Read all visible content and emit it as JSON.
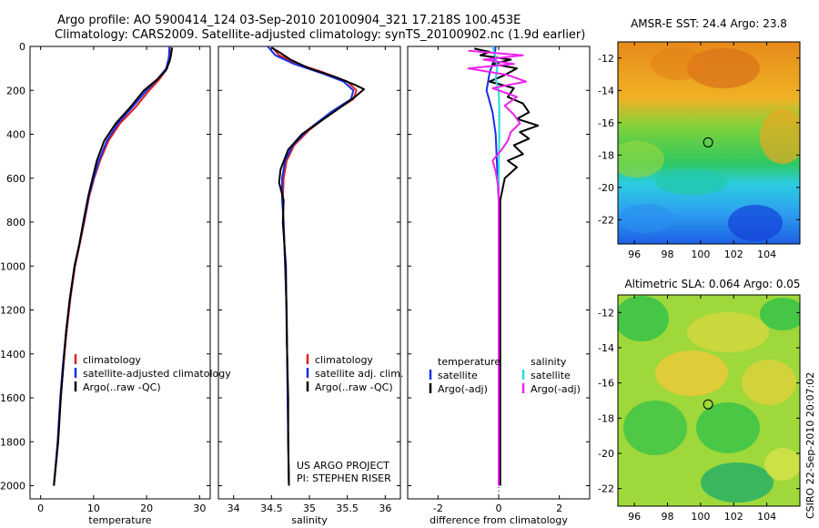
{
  "header": {
    "line1": "Argo profile: AO 5900414_124 03-Sep-2010 20100904_321 17.218S 100.453E",
    "line2": "Climatology: CARS2009. Satellite-adjusted climatology: synTS_20100902.nc (1.9d earlier)"
  },
  "side_label": "CSIRO 22-Sep-2010 20:07:02",
  "colors": {
    "climatology": "#e02020",
    "satellite": "#1a2ee8",
    "argo": "#000000",
    "sal_sat": "#22dddd",
    "sal_argo": "#ee22ee"
  },
  "chart_data": [
    {
      "type": "line",
      "id": "temperature",
      "xlabel": "temperature",
      "ylabel": "",
      "xlim": [
        -2,
        32
      ],
      "ylim": [
        2060,
        0
      ],
      "xticks": [
        0,
        10,
        20,
        30
      ],
      "yticks": [
        0,
        200,
        400,
        600,
        800,
        1000,
        1200,
        1400,
        1600,
        1800,
        2000
      ],
      "legend": [
        "climatology",
        "satellite-adjusted climatology",
        "Argo(..raw -QC)"
      ],
      "series": [
        {
          "name": "climatology",
          "color": "climatology",
          "points": [
            [
              24.4,
              0
            ],
            [
              24.3,
              50
            ],
            [
              23.9,
              100
            ],
            [
              22.4,
              150
            ],
            [
              20.5,
              200
            ],
            [
              17.8,
              280
            ],
            [
              15.0,
              350
            ],
            [
              12.8,
              430
            ],
            [
              11.2,
              520
            ],
            [
              10.1,
              600
            ],
            [
              9.2,
              680
            ],
            [
              8.4,
              780
            ],
            [
              7.4,
              900
            ],
            [
              6.5,
              1000
            ],
            [
              5.6,
              1150
            ],
            [
              4.9,
              1300
            ],
            [
              4.3,
              1450
            ],
            [
              3.8,
              1600
            ],
            [
              3.3,
              1800
            ],
            [
              2.5,
              2000
            ]
          ]
        },
        {
          "name": "satellite-adjusted climatology",
          "color": "satellite",
          "points": [
            [
              24.3,
              0
            ],
            [
              24.2,
              50
            ],
            [
              23.7,
              100
            ],
            [
              22.0,
              150
            ],
            [
              20.0,
              200
            ],
            [
              17.2,
              280
            ],
            [
              14.6,
              350
            ],
            [
              12.5,
              430
            ],
            [
              11.0,
              520
            ],
            [
              10.0,
              600
            ],
            [
              9.1,
              680
            ],
            [
              8.3,
              780
            ],
            [
              7.3,
              900
            ],
            [
              6.4,
              1000
            ],
            [
              5.5,
              1150
            ],
            [
              4.8,
              1300
            ],
            [
              4.2,
              1450
            ],
            [
              3.7,
              1600
            ],
            [
              3.2,
              1800
            ],
            [
              2.5,
              2000
            ]
          ]
        },
        {
          "name": "Argo(..raw -QC)",
          "color": "argo",
          "points": [
            [
              24.8,
              5
            ],
            [
              24.6,
              40
            ],
            [
              24.3,
              70
            ],
            [
              23.6,
              110
            ],
            [
              22.0,
              150
            ],
            [
              19.5,
              200
            ],
            [
              16.8,
              280
            ],
            [
              14.2,
              350
            ],
            [
              12.0,
              430
            ],
            [
              10.6,
              520
            ],
            [
              9.8,
              600
            ],
            [
              9.0,
              680
            ],
            [
              8.2,
              780
            ],
            [
              7.3,
              900
            ],
            [
              6.4,
              1000
            ],
            [
              5.5,
              1150
            ],
            [
              4.8,
              1300
            ],
            [
              4.3,
              1450
            ],
            [
              3.8,
              1600
            ],
            [
              3.3,
              1800
            ],
            [
              2.5,
              2000
            ]
          ]
        }
      ]
    },
    {
      "type": "line",
      "id": "salinity",
      "xlabel": "salinity",
      "xlim": [
        33.8,
        36.2
      ],
      "ylim": [
        2060,
        0
      ],
      "xticks": [
        34,
        34.5,
        35,
        35.5,
        36
      ],
      "xticklabels": [
        "34",
        "34.5",
        "35",
        "35.5",
        "36"
      ],
      "legend": [
        "climatology",
        "satellite adj. clim.",
        "Argo(..raw -QC)"
      ],
      "annotation": [
        "US ARGO PROJECT",
        "PI: STEPHEN RISER"
      ],
      "series": [
        {
          "name": "climatology",
          "color": "climatology",
          "points": [
            [
              34.5,
              0
            ],
            [
              34.6,
              40
            ],
            [
              34.85,
              80
            ],
            [
              35.2,
              120
            ],
            [
              35.5,
              160
            ],
            [
              35.62,
              200
            ],
            [
              35.58,
              240
            ],
            [
              35.3,
              300
            ],
            [
              35.0,
              380
            ],
            [
              34.8,
              450
            ],
            [
              34.7,
              520
            ],
            [
              34.66,
              600
            ],
            [
              34.65,
              700
            ],
            [
              34.66,
              800
            ],
            [
              34.68,
              1000
            ],
            [
              34.7,
              1200
            ],
            [
              34.71,
              1500
            ],
            [
              34.72,
              1800
            ],
            [
              34.73,
              2000
            ]
          ]
        },
        {
          "name": "satellite adj. clim.",
          "color": "satellite",
          "points": [
            [
              34.45,
              0
            ],
            [
              34.55,
              40
            ],
            [
              34.8,
              80
            ],
            [
              35.15,
              120
            ],
            [
              35.45,
              160
            ],
            [
              35.58,
              200
            ],
            [
              35.55,
              240
            ],
            [
              35.28,
              300
            ],
            [
              34.98,
              380
            ],
            [
              34.78,
              450
            ],
            [
              34.68,
              520
            ],
            [
              34.64,
              600
            ],
            [
              34.64,
              700
            ],
            [
              34.66,
              800
            ],
            [
              34.68,
              1000
            ],
            [
              34.7,
              1200
            ],
            [
              34.71,
              1500
            ],
            [
              34.72,
              1800
            ],
            [
              34.73,
              2000
            ]
          ]
        },
        {
          "name": "Argo(..raw -QC)",
          "color": "argo",
          "points": [
            [
              34.5,
              5
            ],
            [
              34.62,
              30
            ],
            [
              34.75,
              60
            ],
            [
              35.0,
              100
            ],
            [
              35.35,
              140
            ],
            [
              35.6,
              175
            ],
            [
              35.72,
              195
            ],
            [
              35.6,
              230
            ],
            [
              35.4,
              280
            ],
            [
              35.15,
              340
            ],
            [
              34.9,
              400
            ],
            [
              34.72,
              470
            ],
            [
              34.62,
              560
            ],
            [
              34.6,
              620
            ],
            [
              34.66,
              700
            ],
            [
              34.65,
              800
            ],
            [
              34.69,
              1000
            ],
            [
              34.7,
              1300
            ],
            [
              34.72,
              1600
            ],
            [
              34.72,
              1800
            ],
            [
              34.73,
              2000
            ]
          ]
        }
      ]
    },
    {
      "type": "line",
      "id": "difference",
      "xlabel": "difference from climatology",
      "xlim": [
        -3.0,
        3.0
      ],
      "ylim": [
        2060,
        0
      ],
      "xticks": [
        -2,
        0,
        2
      ],
      "legend": {
        "temperature_title": "temperature",
        "salinity_title": "salinity",
        "temperature": [
          "satellite",
          "Argo(-adj)"
        ],
        "salinity": [
          "satellite",
          "Argo(-adj)"
        ]
      },
      "series": [
        {
          "name": "temperature satellite",
          "color": "satellite",
          "points": [
            [
              -0.1,
              0
            ],
            [
              -0.15,
              60
            ],
            [
              -0.3,
              120
            ],
            [
              -0.4,
              200
            ],
            [
              -0.2,
              300
            ],
            [
              -0.1,
              400
            ],
            [
              -0.05,
              550
            ],
            [
              0,
              700
            ],
            [
              0,
              1000
            ],
            [
              0,
              1500
            ],
            [
              0,
              2000
            ]
          ]
        },
        {
          "name": "temperature Argo(-adj)",
          "color": "argo",
          "points": [
            [
              -0.8,
              10
            ],
            [
              -0.3,
              25
            ],
            [
              -0.6,
              40
            ],
            [
              0.4,
              60
            ],
            [
              -0.2,
              80
            ],
            [
              0.6,
              100
            ],
            [
              0.2,
              130
            ],
            [
              -0.3,
              160
            ],
            [
              0.5,
              190
            ],
            [
              0.3,
              230
            ],
            [
              0.8,
              260
            ],
            [
              1.0,
              300
            ],
            [
              0.6,
              330
            ],
            [
              1.3,
              360
            ],
            [
              0.7,
              390
            ],
            [
              1.0,
              420
            ],
            [
              0.5,
              450
            ],
            [
              0.8,
              490
            ],
            [
              0.3,
              520
            ],
            [
              0.6,
              550
            ],
            [
              0.2,
              600
            ],
            [
              0.05,
              700
            ],
            [
              0.05,
              1000
            ],
            [
              0.05,
              1500
            ],
            [
              0.05,
              2000
            ]
          ]
        },
        {
          "name": "salinity satellite",
          "color": "sal_sat",
          "points": [
            [
              -0.2,
              0
            ],
            [
              -0.1,
              50
            ],
            [
              -0.05,
              100
            ],
            [
              -0.1,
              150
            ],
            [
              0.0,
              200
            ],
            [
              0.02,
              300
            ],
            [
              0.02,
              400
            ],
            [
              0,
              600
            ],
            [
              0,
              1000
            ],
            [
              0,
              2000
            ]
          ]
        },
        {
          "name": "salinity Argo(-adj)",
          "color": "sal_argo",
          "points": [
            [
              -1.0,
              20
            ],
            [
              0.8,
              40
            ],
            [
              -0.5,
              60
            ],
            [
              0.5,
              80
            ],
            [
              -1.0,
              100
            ],
            [
              0.3,
              130
            ],
            [
              0.9,
              160
            ],
            [
              -0.2,
              190
            ],
            [
              0.6,
              230
            ],
            [
              0.2,
              270
            ],
            [
              0.5,
              310
            ],
            [
              0.7,
              350
            ],
            [
              0.4,
              390
            ],
            [
              0.3,
              430
            ],
            [
              0.1,
              470
            ],
            [
              -0.2,
              520
            ],
            [
              -0.1,
              570
            ],
            [
              0,
              650
            ],
            [
              0,
              1000
            ],
            [
              0,
              2000
            ]
          ]
        }
      ]
    },
    {
      "type": "heatmap",
      "id": "sst_map",
      "title": "AMSR-E SST: 24.4 Argo: 23.8",
      "xlim": [
        95,
        106
      ],
      "ylim": [
        -23.5,
        -11
      ],
      "xticks": [
        96,
        98,
        100,
        102,
        104
      ],
      "yticks": [
        -12,
        -14,
        -16,
        -18,
        -20,
        -22
      ],
      "argo_position": [
        100.453,
        -17.218
      ]
    },
    {
      "type": "heatmap",
      "id": "sla_map",
      "title": "Altimetric SLA: 0.064 Argo: 0.05",
      "xlim": [
        95,
        106
      ],
      "ylim": [
        -23,
        -11
      ],
      "xticks": [
        96,
        98,
        100,
        102,
        104
      ],
      "yticks": [
        -12,
        -14,
        -16,
        -18,
        -20,
        -22
      ],
      "argo_position": [
        100.453,
        -17.218
      ]
    }
  ]
}
